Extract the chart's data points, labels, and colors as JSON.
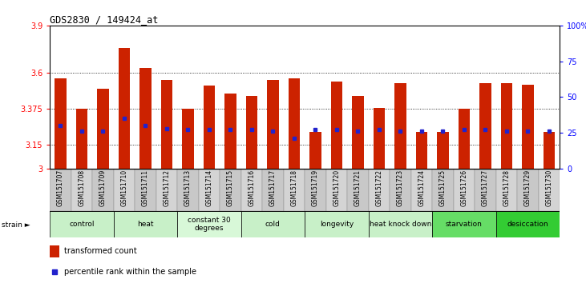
{
  "title": "GDS2830 / 149424_at",
  "samples": [
    "GSM151707",
    "GSM151708",
    "GSM151709",
    "GSM151710",
    "GSM151711",
    "GSM151712",
    "GSM151713",
    "GSM151714",
    "GSM151715",
    "GSM151716",
    "GSM151717",
    "GSM151718",
    "GSM151719",
    "GSM151720",
    "GSM151721",
    "GSM151722",
    "GSM151723",
    "GSM151724",
    "GSM151725",
    "GSM151726",
    "GSM151727",
    "GSM151728",
    "GSM151729",
    "GSM151730"
  ],
  "red_values": [
    3.565,
    3.375,
    3.5,
    3.76,
    3.63,
    3.555,
    3.375,
    3.52,
    3.47,
    3.455,
    3.555,
    3.565,
    3.23,
    3.545,
    3.455,
    3.38,
    3.535,
    3.23,
    3.23,
    3.375,
    3.535,
    3.535,
    3.525,
    3.23
  ],
  "blue_values": [
    30,
    26,
    26,
    35,
    30,
    28,
    27,
    27,
    27,
    27,
    26,
    21,
    27,
    27,
    26,
    27,
    26,
    26,
    26,
    27,
    27,
    26,
    26,
    26
  ],
  "ylim_left": [
    3.0,
    3.9
  ],
  "ylim_right": [
    0,
    100
  ],
  "yticks_left": [
    3.0,
    3.15,
    3.375,
    3.6,
    3.9
  ],
  "ytick_labels_left": [
    "3",
    "3.15",
    "3.375",
    "3.6",
    "3.9"
  ],
  "yticks_right": [
    0,
    25,
    50,
    75,
    100
  ],
  "ytick_labels_right": [
    "0",
    "25",
    "50",
    "75",
    "100%"
  ],
  "hgrid_vals": [
    3.15,
    3.375,
    3.6
  ],
  "groups": [
    {
      "label": "control",
      "start": 0,
      "end": 3,
      "color": "#c8f0c8"
    },
    {
      "label": "heat",
      "start": 3,
      "end": 6,
      "color": "#c8f0c8"
    },
    {
      "label": "constant 30\ndegrees",
      "start": 6,
      "end": 9,
      "color": "#d8f8d8"
    },
    {
      "label": "cold",
      "start": 9,
      "end": 12,
      "color": "#c8f0c8"
    },
    {
      "label": "longevity",
      "start": 12,
      "end": 15,
      "color": "#c8f0c8"
    },
    {
      "label": "heat knock down",
      "start": 15,
      "end": 18,
      "color": "#c8f0c8"
    },
    {
      "label": "starvation",
      "start": 18,
      "end": 21,
      "color": "#66dd66"
    },
    {
      "label": "desiccation",
      "start": 21,
      "end": 24,
      "color": "#33cc33"
    }
  ],
  "bar_color": "#cc2200",
  "blue_color": "#2222cc",
  "bar_width": 0.55,
  "base_value": 3.0,
  "sample_box_color": "#cccccc",
  "strain_label": "strain ►",
  "legend_items": [
    {
      "label": "transformed count",
      "color": "#cc2200"
    },
    {
      "label": "percentile rank within the sample",
      "color": "#2222cc"
    }
  ]
}
